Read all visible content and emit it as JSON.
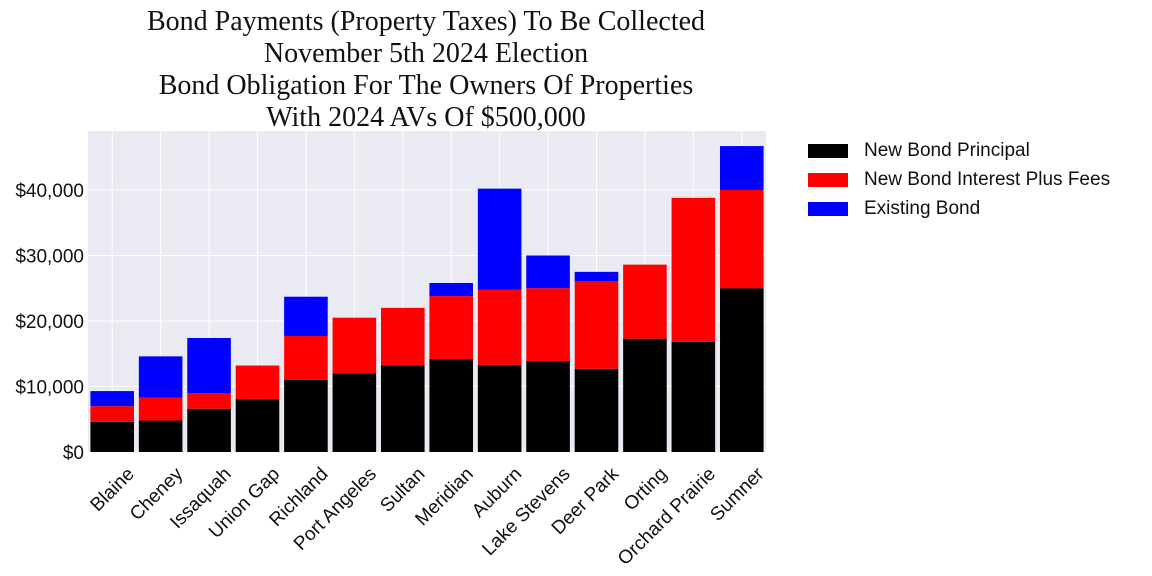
{
  "chart_data": {
    "type": "bar",
    "stacked": true,
    "title_lines": [
      "Bond Payments (Property Taxes) To Be Collected",
      "November 5th 2024 Election",
      "Bond Obligation For The Owners Of Properties",
      "With 2024 AVs Of $500,000"
    ],
    "categories": [
      "Blaine",
      "Cheney",
      "Issaquah",
      "Union Gap",
      "Richland",
      "Port Angeles",
      "Sultan",
      "Meridian",
      "Auburn",
      "Lake Stevens",
      "Deer Park",
      "Orting",
      "Orchard Prairie",
      "Sumner"
    ],
    "series": [
      {
        "name": "New Bond Principal",
        "color": "#000000",
        "values": [
          4600,
          4800,
          6600,
          8100,
          11000,
          12000,
          13200,
          14200,
          13300,
          13900,
          12700,
          17300,
          16800,
          25000
        ]
      },
      {
        "name": "New Bond Interest Plus Fees",
        "color": "#ff0000",
        "values": [
          2400,
          3500,
          2400,
          5100,
          6700,
          8500,
          8800,
          9600,
          11500,
          11100,
          13400,
          11300,
          22000,
          15000
        ]
      },
      {
        "name": "Existing Bond",
        "color": "#0000ff",
        "values": [
          2300,
          6300,
          8400,
          0,
          6000,
          0,
          0,
          2000,
          15400,
          5000,
          1400,
          0,
          0,
          6700
        ]
      }
    ],
    "xlabel": "",
    "ylabel": "",
    "ylim": [
      0,
      49000
    ],
    "yticks": [
      0,
      10000,
      20000,
      30000,
      40000
    ],
    "ytick_labels": [
      "$0",
      "$10,000",
      "$20,000",
      "$30,000",
      "$40,000"
    ],
    "grid": true,
    "legend_position": "outside-right-top",
    "background": "#eaeaf2"
  }
}
